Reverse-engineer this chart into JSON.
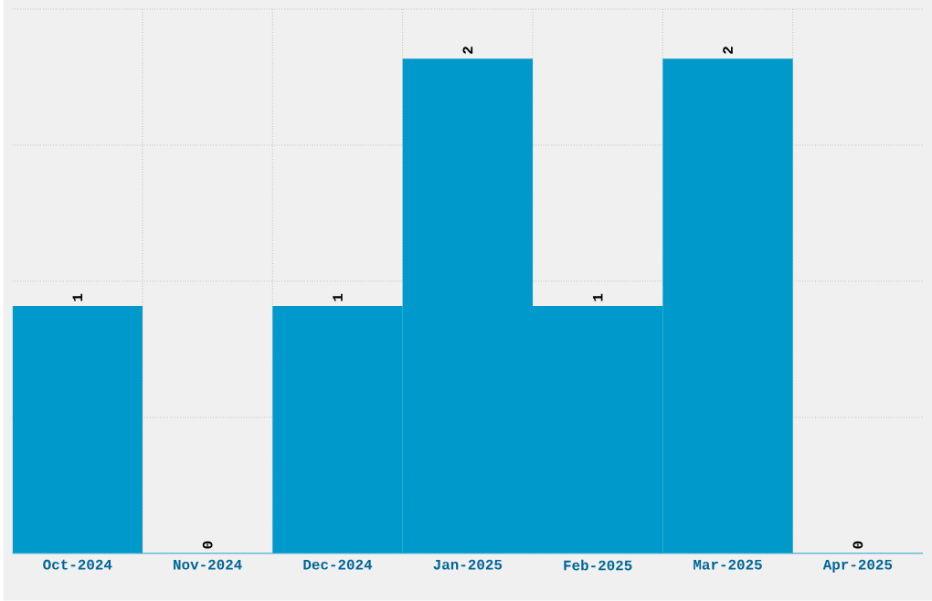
{
  "chart_data": {
    "type": "bar",
    "categories": [
      "Oct-2024",
      "Nov-2024",
      "Dec-2024",
      "Jan-2025",
      "Feb-2025",
      "Mar-2025",
      "Apr-2025"
    ],
    "values": [
      1,
      0,
      1,
      2,
      1,
      2,
      0
    ],
    "color": "#0099cc",
    "ylim": [
      0,
      2.2
    ],
    "grid": true,
    "data_labels": true,
    "tick_labels": "x"
  }
}
